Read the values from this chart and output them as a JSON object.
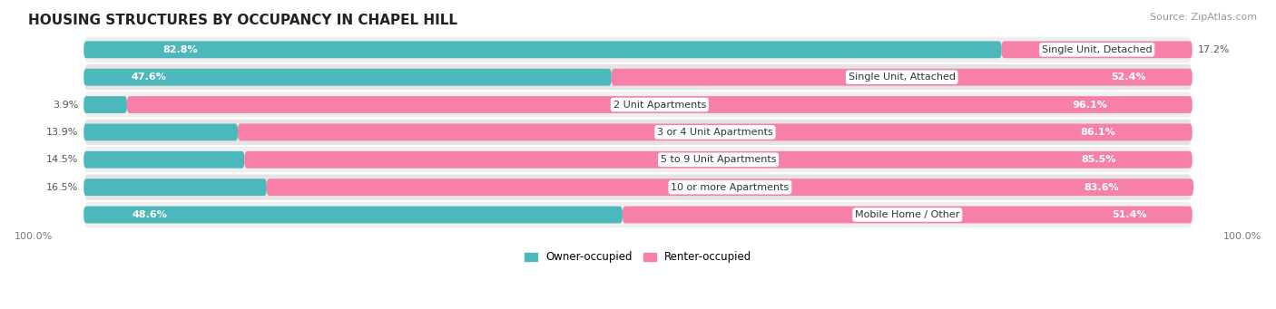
{
  "title": "HOUSING STRUCTURES BY OCCUPANCY IN CHAPEL HILL",
  "source": "Source: ZipAtlas.com",
  "categories": [
    "Single Unit, Detached",
    "Single Unit, Attached",
    "2 Unit Apartments",
    "3 or 4 Unit Apartments",
    "5 to 9 Unit Apartments",
    "10 or more Apartments",
    "Mobile Home / Other"
  ],
  "owner_pct": [
    82.8,
    47.6,
    3.9,
    13.9,
    14.5,
    16.5,
    48.6
  ],
  "renter_pct": [
    17.2,
    52.4,
    96.1,
    86.1,
    85.5,
    83.6,
    51.4
  ],
  "owner_color": "#4db8bb",
  "renter_color": "#f780a8",
  "row_color_odd": "#efefef",
  "row_color_even": "#e4e4e4",
  "bar_height": 0.62,
  "title_fontsize": 11,
  "cat_fontsize": 8.0,
  "pct_fontsize": 8.0,
  "tick_fontsize": 8,
  "source_fontsize": 8,
  "legend_fontsize": 8.5
}
